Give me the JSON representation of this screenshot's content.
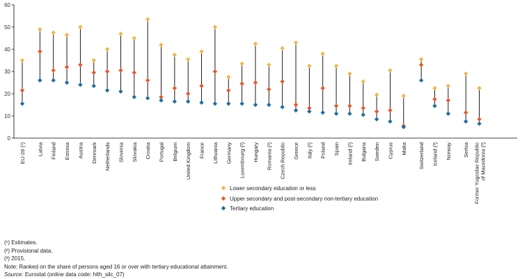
{
  "chart_data": {
    "type": "scatter",
    "title": "",
    "xlabel": "",
    "ylabel": "",
    "ylim": [
      0,
      60
    ],
    "yticks": [
      0,
      10,
      20,
      30,
      40,
      50,
      60
    ],
    "grid": false,
    "categories": [
      "EU-28 (¹)",
      "Latvia",
      "Finland",
      "Estonia",
      "Austria",
      "Denmark",
      "Netherlands",
      "Slovenia",
      "Slovakia",
      "Croatia",
      "Portugal",
      "Belgium",
      "United Kingdom",
      "France",
      "Lithuania",
      "Germany",
      "Luxembourg (²)",
      "Hungary",
      "Romania (²)",
      "Czech Republic",
      "Greece",
      "Italy (²)",
      "Poland",
      "Spain",
      "Ireland (²)",
      "Bulgaria",
      "Sweden",
      "Cyprus",
      "Malta",
      "Switzerland",
      "Iceland (³)",
      "Norway",
      "Serbia",
      "Former Yugoslav Republic of Macedonia (³)"
    ],
    "groups": [
      1,
      28,
      3,
      2
    ],
    "series": [
      {
        "name": "Lower secondary education or less",
        "color": "#f3b54a",
        "values": [
          35,
          49,
          47.5,
          46.5,
          50,
          35,
          40,
          47,
          45,
          53.5,
          42,
          37.5,
          35.5,
          39,
          50,
          27.5,
          33.5,
          42.5,
          33,
          40.5,
          43,
          32.5,
          38,
          32.5,
          29,
          25.5,
          19.5,
          30.5,
          19,
          35.5,
          22.5,
          23.5,
          29,
          22.5
        ]
      },
      {
        "name": "Upper secondary and post-secondary non-tertiary education",
        "color": "#e8572a",
        "values": [
          21.5,
          39,
          30.5,
          32,
          33,
          29.5,
          30,
          30.5,
          29.5,
          26,
          18.5,
          22.5,
          20,
          23.5,
          30,
          21.5,
          24.5,
          25,
          22,
          25.5,
          15,
          13.5,
          22.5,
          14.5,
          14.5,
          13.5,
          12,
          12.5,
          5.5,
          33,
          17.5,
          17,
          11.5,
          8.5
        ]
      },
      {
        "name": "Tertiary education",
        "color": "#1f6fa0",
        "values": [
          15.5,
          26,
          26,
          25,
          24,
          23.5,
          21.5,
          21,
          18.5,
          18,
          17,
          16.5,
          16.5,
          16,
          15.5,
          15.5,
          15.5,
          15,
          15,
          14,
          12.5,
          12,
          11.5,
          11,
          11,
          10.5,
          8.5,
          7.5,
          5,
          26,
          14.5,
          11,
          7.5,
          6.5
        ]
      }
    ]
  },
  "notes": {
    "note1": "(¹) Estimates.",
    "note2": "(²) Provisional data.",
    "note3": "(³) 2015.",
    "note4": "Note: Ranked on the share of persons aged 16 or over with tertiary educational attainment.",
    "source_label": "Source:",
    "source_text": "Eurostat (online data code: hlth_silc_07)"
  }
}
